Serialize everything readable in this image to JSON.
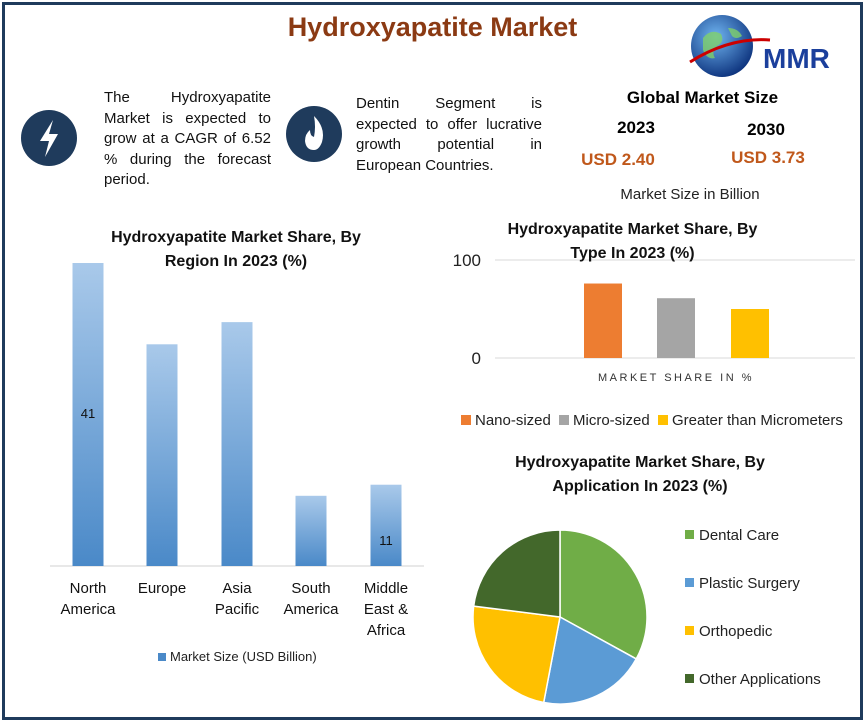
{
  "header": {
    "title": "Hydroxyapatite Market",
    "logo": "MMR"
  },
  "info": [
    {
      "text": "The Hydroxyapatite Market is expected to grow at a CAGR of 6.52 % during the forecast period."
    },
    {
      "text": "Dentin Segment is expected to offer lucrative growth potential in European Countries."
    }
  ],
  "market_size": {
    "title": "Global Market Size",
    "years": [
      "2023",
      "2030"
    ],
    "values": [
      "USD 2.40",
      "USD 3.73"
    ],
    "note": "Market Size in Billion"
  },
  "chart_data": [
    {
      "type": "bar",
      "title": "Hydroxyapatite Market Share, By Region In 2023 (%)",
      "categories": [
        "North America",
        "Europe",
        "Asia Pacific",
        "South America",
        "Middle East & Africa"
      ],
      "series": [
        {
          "name": "Market Size (USD Billion)",
          "color": "#4a89c8",
          "values": [
            41,
            30,
            33,
            9.5,
            11
          ],
          "value_labels": [
            "41",
            null,
            null,
            null,
            "11"
          ]
        }
      ],
      "ylim": [
        0,
        41
      ]
    },
    {
      "type": "bar",
      "title": "Hydroxyapatite Market Share, By Type In 2023 (%)",
      "x_label": "MARKET SHARE IN %",
      "series": [
        {
          "name": "Nano-sized",
          "color": "#ed7d31",
          "values": [
            76
          ]
        },
        {
          "name": "Micro-sized",
          "color": "#a5a5a5",
          "values": [
            61
          ]
        },
        {
          "name": "Greater than Micrometers",
          "color": "#ffc000",
          "values": [
            50
          ]
        }
      ],
      "ylim": [
        0,
        100
      ],
      "yticks": [
        0,
        100
      ]
    },
    {
      "type": "pie",
      "title": "Hydroxyapatite Market Share, By Application In 2023 (%)",
      "categories": [
        "Dental Care",
        "Plastic Surgery",
        "Orthopedic",
        "Other Applications"
      ],
      "values": [
        33,
        20,
        24,
        23
      ],
      "colors": [
        "#70ad47",
        "#5b9bd5",
        "#ffc000",
        "#43682b"
      ]
    }
  ]
}
